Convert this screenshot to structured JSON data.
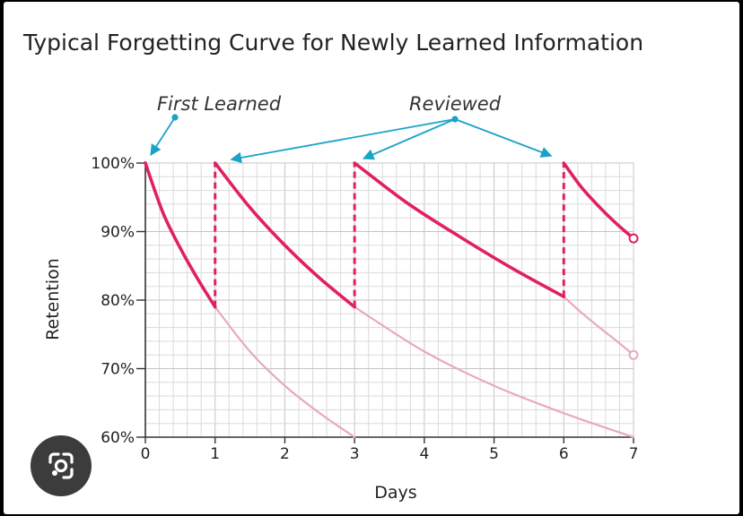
{
  "chart_data": {
    "type": "line",
    "title": "Typical Forgetting Curve for Newly Learned Information",
    "xlabel": "Days",
    "ylabel": "Retention",
    "xlim": [
      0,
      7
    ],
    "ylim": [
      60,
      100
    ],
    "x_ticks": [
      "0",
      "1",
      "2",
      "3",
      "4",
      "5",
      "6",
      "7"
    ],
    "y_ticks": [
      "60%",
      "70%",
      "80%",
      "90%",
      "100%"
    ],
    "grid": true,
    "series": [
      {
        "role": "retention-with-review",
        "color": "#e0215f",
        "segments": [
          {
            "x": [
              0,
              0.25,
              0.5,
              0.75,
              1
            ],
            "y": [
              100,
              92.8,
              87.6,
              83.1,
              79
            ]
          },
          {
            "x": [
              1,
              1.5,
              2,
              2.5,
              3
            ],
            "y": [
              100,
              93.5,
              88,
              83.2,
              79
            ]
          },
          {
            "x": [
              3,
              3.75,
              4.5,
              5.25,
              6
            ],
            "y": [
              100,
              94.2,
              89.3,
              84.7,
              80.5
            ]
          },
          {
            "x": [
              6,
              6.25,
              6.5,
              6.75,
              7
            ],
            "y": [
              100,
              96.5,
              93.7,
              91.2,
              89
            ]
          }
        ]
      },
      {
        "role": "forgetting-without-review",
        "color": "#e7a9bf",
        "segments": [
          {
            "x": [
              1,
              1.5,
              2,
              2.5,
              3
            ],
            "y": [
              79,
              72.5,
              67.5,
              63.5,
              60
            ]
          },
          {
            "x": [
              3,
              4,
              5,
              6,
              7
            ],
            "y": [
              79,
              72.5,
              67.5,
              63.5,
              60
            ]
          },
          {
            "x": [
              6,
              6.25,
              6.5,
              6.75,
              7
            ],
            "y": [
              80.5,
              78.2,
              76.1,
              74.1,
              72
            ]
          }
        ]
      }
    ],
    "review_markers": [
      {
        "x": 1,
        "from": 79,
        "to": 100
      },
      {
        "x": 3,
        "from": 79,
        "to": 100
      },
      {
        "x": 6,
        "from": 80.5,
        "to": 100
      }
    ],
    "annotations": [
      {
        "text": "First Learned",
        "points_to": [
          {
            "x": 0,
            "y": 100
          }
        ]
      },
      {
        "text": "Reviewed",
        "points_to": [
          {
            "x": 1,
            "y": 100
          },
          {
            "x": 3,
            "y": 100
          },
          {
            "x": 6,
            "y": 100
          }
        ]
      }
    ],
    "accent_color": "#1aa3c7"
  },
  "overlay": {
    "lens_icon": "google-lens-icon"
  }
}
